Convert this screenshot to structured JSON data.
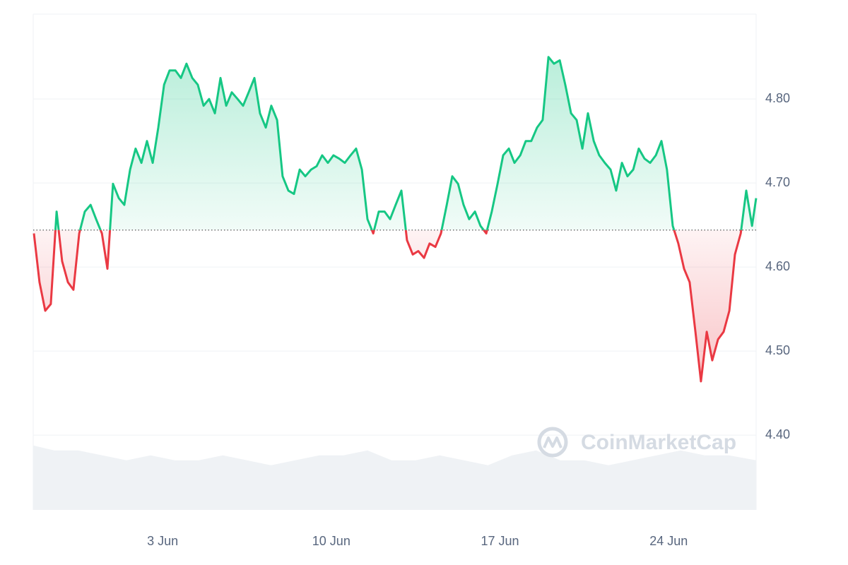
{
  "chart_data": {
    "type": "line",
    "watermark": "CoinMarketCap",
    "xlim": [
      -2.37,
      27.63
    ],
    "xticks": [
      {
        "value": 3,
        "label": "3 Jun"
      },
      {
        "value": 10,
        "label": "10 Jun"
      },
      {
        "value": 17,
        "label": "17 Jun"
      },
      {
        "value": 24,
        "label": "24 Jun"
      }
    ],
    "ylim": [
      4.311,
      4.901
    ],
    "yticks": [
      {
        "value": 4.4,
        "label": "4.40"
      },
      {
        "value": 4.5,
        "label": "4.50"
      },
      {
        "value": 4.6,
        "label": "4.60"
      },
      {
        "value": 4.7,
        "label": "4.70"
      },
      {
        "value": 4.8,
        "label": "4.80"
      }
    ],
    "grid": true,
    "baseline": 4.644,
    "color_up": "#16c784",
    "color_down": "#ea3943",
    "x": [
      -2.34,
      -2.11,
      -1.87,
      -1.64,
      -1.4,
      -1.17,
      -0.93,
      -0.7,
      -0.46,
      -0.23,
      0.01,
      0.24,
      0.48,
      0.71,
      0.94,
      1.18,
      1.41,
      1.65,
      1.88,
      2.12,
      2.35,
      2.59,
      2.82,
      3.06,
      3.29,
      3.53,
      3.76,
      3.99,
      4.23,
      4.46,
      4.7,
      4.93,
      5.17,
      5.4,
      5.64,
      5.87,
      6.11,
      6.34,
      6.57,
      6.81,
      7.04,
      7.28,
      7.51,
      7.75,
      7.98,
      8.22,
      8.45,
      8.69,
      8.92,
      9.16,
      9.39,
      9.62,
      9.86,
      10.09,
      10.33,
      10.56,
      10.8,
      11.03,
      11.27,
      11.5,
      11.74,
      11.97,
      12.21,
      12.44,
      12.67,
      12.91,
      13.14,
      13.38,
      13.61,
      13.85,
      14.08,
      14.32,
      14.55,
      14.79,
      15.02,
      15.26,
      15.49,
      15.72,
      15.96,
      16.19,
      16.43,
      16.66,
      16.9,
      17.13,
      17.37,
      17.6,
      17.84,
      18.07,
      18.3,
      18.54,
      18.77,
      19.01,
      19.24,
      19.48,
      19.71,
      19.95,
      20.18,
      20.42,
      20.65,
      20.89,
      21.12,
      21.35,
      21.59,
      21.82,
      22.06,
      22.29,
      22.53,
      22.76,
      23.0,
      23.23,
      23.47,
      23.7,
      23.93,
      24.17,
      24.4,
      24.64,
      24.87,
      25.11,
      25.34,
      25.58,
      25.81,
      26.05,
      26.28,
      26.52,
      26.75,
      26.99,
      27.22,
      27.46,
      27.63
    ],
    "values": [
      4.64,
      4.582,
      4.548,
      4.556,
      4.666,
      4.607,
      4.582,
      4.573,
      4.64,
      4.666,
      4.674,
      4.657,
      4.64,
      4.598,
      4.699,
      4.682,
      4.674,
      4.716,
      4.741,
      4.724,
      4.75,
      4.724,
      4.766,
      4.817,
      4.834,
      4.834,
      4.825,
      4.842,
      4.825,
      4.817,
      4.792,
      4.8,
      4.783,
      4.825,
      4.792,
      4.808,
      4.8,
      4.792,
      4.808,
      4.825,
      4.783,
      4.766,
      4.792,
      4.775,
      4.708,
      4.691,
      4.687,
      4.716,
      4.708,
      4.716,
      4.72,
      4.733,
      4.724,
      4.733,
      4.729,
      4.724,
      4.733,
      4.741,
      4.716,
      4.657,
      4.64,
      4.666,
      4.666,
      4.657,
      4.674,
      4.691,
      4.632,
      4.615,
      4.619,
      4.611,
      4.628,
      4.624,
      4.64,
      4.674,
      4.708,
      4.699,
      4.674,
      4.657,
      4.666,
      4.649,
      4.64,
      4.666,
      4.699,
      4.733,
      4.741,
      4.724,
      4.733,
      4.75,
      4.75,
      4.766,
      4.775,
      4.85,
      4.842,
      4.846,
      4.817,
      4.783,
      4.775,
      4.741,
      4.783,
      4.75,
      4.733,
      4.724,
      4.716,
      4.691,
      4.724,
      4.708,
      4.716,
      4.741,
      4.729,
      4.724,
      4.733,
      4.75,
      4.716,
      4.649,
      4.628,
      4.598,
      4.582,
      4.523,
      4.464,
      4.523,
      4.489,
      4.514,
      4.523,
      4.548,
      4.615,
      4.64,
      4.691,
      4.649,
      4.682
    ],
    "volume": {
      "color": "#eff2f5",
      "y2lim": [
        0,
        100
      ],
      "x": [
        -2.37,
        -1.5,
        -0.5,
        0.5,
        1.5,
        2.5,
        3.5,
        4.5,
        5.5,
        6.5,
        7.5,
        8.5,
        9.5,
        10.5,
        11.5,
        12.5,
        13.5,
        14.5,
        15.5,
        16.5,
        17.5,
        18.5,
        19.5,
        20.5,
        21.5,
        22.5,
        23.5,
        24.5,
        25.5,
        26.5,
        27.63
      ],
      "values": [
        13,
        12,
        12,
        11,
        10,
        11,
        10,
        10,
        11,
        10,
        9,
        10,
        11,
        11,
        12,
        10,
        10,
        11,
        10,
        9,
        11,
        12,
        10,
        10,
        9,
        10,
        11,
        12,
        11,
        11,
        10
      ]
    }
  }
}
